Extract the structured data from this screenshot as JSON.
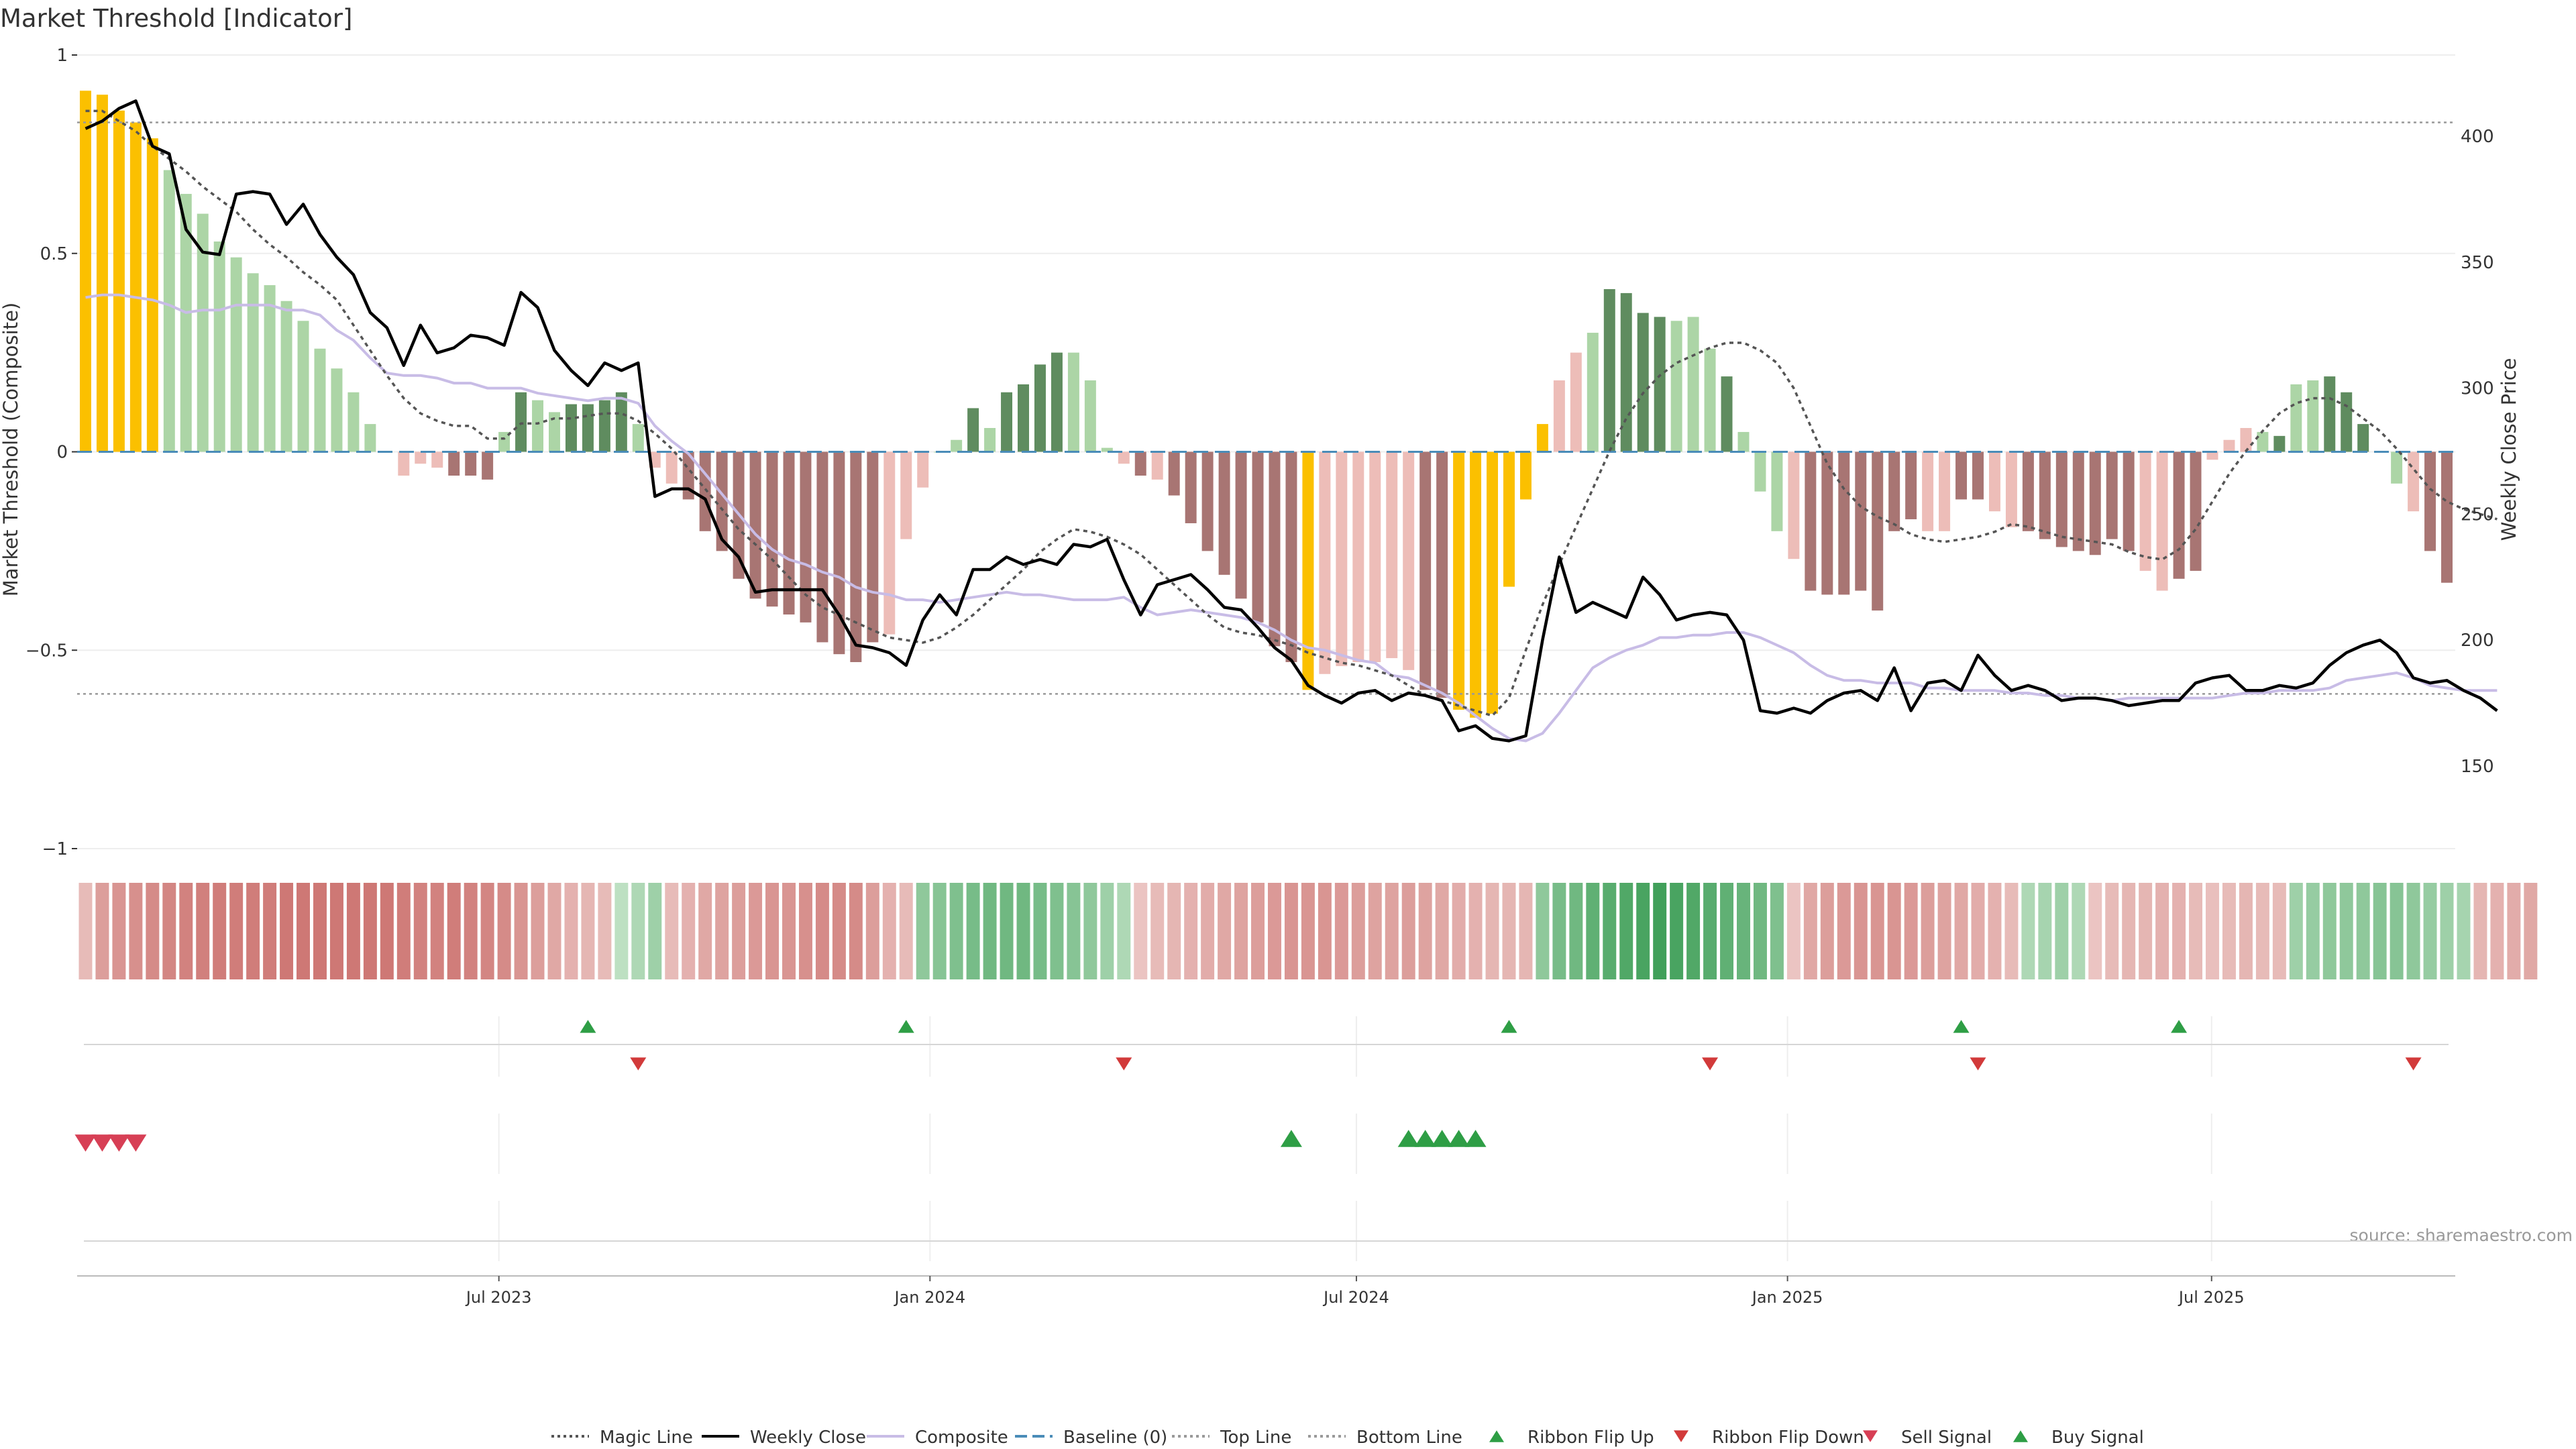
{
  "title": "Market Threshold [Indicator]",
  "source": "source: sharemaestro.com",
  "colors": {
    "strong_up": "#5f8c5f",
    "weak_up": "#acd5a6",
    "strong_down": "#a87573",
    "weak_down": "#edbdb8",
    "extreme": "#fbc000",
    "weekly_close": "#000000",
    "composite_line": "#c8bce6",
    "magic_line": "#555555",
    "baseline": "#4a8cb8",
    "threshold_lines": "#888888",
    "ribbon_flip_up": "#2e9e45",
    "ribbon_flip_down": "#d23a3a",
    "buy_signal": "#2e9e45",
    "sell_signal": "#d73f55"
  },
  "chart_data": {
    "type": "bar",
    "title": "Market Threshold [Indicator]",
    "ylabel": "Market Threshold (Composite)",
    "ylabel_right": "Weekly Close Price",
    "ylim": [
      -1,
      1
    ],
    "ylim_right": [
      100,
      430
    ],
    "yticks": [
      1,
      0.5,
      0,
      -0.5,
      -1
    ],
    "ytick_labels": [
      "1",
      "0.5",
      "0",
      "−0.5",
      "−1"
    ],
    "yticks_right": [
      400,
      350,
      300,
      250,
      200,
      150
    ],
    "top_line": 0.83,
    "bottom_line": -0.61,
    "baseline": 0,
    "grid": true,
    "legend_position": "bottom",
    "x_start": "2023-01-02",
    "x_end": "2025-10-13",
    "x_ticks": [
      {
        "date": "2023-07-01",
        "label": "Jul 2023"
      },
      {
        "date": "2024-01-01",
        "label": "Jan 2024"
      },
      {
        "date": "2024-07-01",
        "label": "Jul 2024"
      },
      {
        "date": "2025-01-01",
        "label": "Jan 2025"
      },
      {
        "date": "2025-07-01",
        "label": "Jul 2025"
      }
    ],
    "week_start": "2023-01-02",
    "composite": [
      0.91,
      0.9,
      0.86,
      0.83,
      0.79,
      0.71,
      0.65,
      0.6,
      0.53,
      0.49,
      0.45,
      0.42,
      0.38,
      0.33,
      0.26,
      0.21,
      0.15,
      0.07,
      0.0,
      -0.06,
      -0.03,
      -0.04,
      -0.06,
      -0.06,
      -0.07,
      0.05,
      0.15,
      0.13,
      0.1,
      0.12,
      0.12,
      0.13,
      0.15,
      0.07,
      -0.04,
      -0.08,
      -0.12,
      -0.2,
      -0.25,
      -0.32,
      -0.37,
      -0.39,
      -0.41,
      -0.43,
      -0.48,
      -0.51,
      -0.53,
      -0.48,
      -0.46,
      -0.22,
      -0.09,
      0.0,
      0.03,
      0.11,
      0.06,
      0.15,
      0.17,
      0.22,
      0.25,
      0.25,
      0.18,
      0.01,
      -0.03,
      -0.06,
      -0.07,
      -0.11,
      -0.18,
      -0.25,
      -0.31,
      -0.37,
      -0.43,
      -0.49,
      -0.53,
      -0.6,
      -0.56,
      -0.54,
      -0.53,
      -0.53,
      -0.52,
      -0.55,
      -0.6,
      -0.62,
      -0.65,
      -0.67,
      -0.66,
      -0.34,
      -0.12,
      0.07,
      0.18,
      0.25,
      0.3,
      0.41,
      0.4,
      0.35,
      0.34,
      0.33,
      0.34,
      0.26,
      0.19,
      0.05,
      -0.1,
      -0.2,
      -0.27,
      -0.35,
      -0.36,
      -0.36,
      -0.35,
      -0.4,
      -0.2,
      -0.17,
      -0.2,
      -0.2,
      -0.12,
      -0.12,
      -0.15,
      -0.19,
      -0.2,
      -0.22,
      -0.24,
      -0.25,
      -0.26,
      -0.22,
      -0.25,
      -0.3,
      -0.35,
      -0.32,
      -0.3,
      -0.02,
      0.03,
      0.06,
      0.05,
      0.04,
      0.17,
      0.18,
      0.19,
      0.15,
      0.07,
      0.0,
      -0.08,
      -0.15,
      -0.25,
      -0.33
    ],
    "bar_class": [
      "e",
      "e",
      "e",
      "e",
      "e",
      "w",
      "w",
      "w",
      "w",
      "w",
      "w",
      "w",
      "w",
      "w",
      "w",
      "w",
      "w",
      "w",
      "w",
      "wd",
      "wd",
      "wd",
      "sd",
      "sd",
      "sd",
      "w",
      "s",
      "w",
      "w",
      "s",
      "s",
      "s",
      "s",
      "w",
      "wd",
      "wd",
      "sd",
      "sd",
      "sd",
      "sd",
      "sd",
      "sd",
      "sd",
      "sd",
      "sd",
      "sd",
      "sd",
      "sd",
      "wd",
      "wd",
      "wd",
      "w",
      "w",
      "s",
      "w",
      "s",
      "s",
      "s",
      "s",
      "w",
      "w",
      "w",
      "wd",
      "sd",
      "wd",
      "sd",
      "sd",
      "sd",
      "sd",
      "sd",
      "sd",
      "sd",
      "sd",
      "e",
      "wd",
      "wd",
      "wd",
      "wd",
      "wd",
      "wd",
      "sd",
      "sd",
      "e",
      "e",
      "e",
      "e",
      "e",
      "e",
      "wd",
      "wd",
      "w",
      "s",
      "s",
      "s",
      "s",
      "w",
      "w",
      "w",
      "s",
      "w",
      "w",
      "w",
      "wd",
      "sd",
      "sd",
      "sd",
      "sd",
      "sd",
      "sd",
      "sd",
      "wd",
      "wd",
      "sd",
      "sd",
      "wd",
      "wd",
      "sd",
      "sd",
      "sd",
      "sd",
      "sd",
      "sd",
      "sd",
      "wd",
      "wd",
      "sd",
      "sd",
      "wd",
      "wd",
      "wd",
      "w",
      "s",
      "w",
      "w",
      "s",
      "s",
      "s",
      "w",
      "w",
      "wd",
      "sd",
      "sd",
      "sd",
      "sd"
    ],
    "weekly_close": [
      403,
      406,
      411,
      414,
      396,
      393,
      363,
      354,
      353,
      377,
      378,
      377,
      365,
      373,
      361,
      352,
      345,
      330,
      324,
      309,
      325,
      314,
      316,
      321,
      320,
      317,
      338,
      332,
      315,
      307,
      301,
      310,
      307,
      310,
      257,
      260,
      260,
      256,
      240,
      233,
      219,
      220,
      220,
      220,
      220,
      210,
      198,
      197,
      195,
      190,
      208,
      218,
      210,
      228,
      228,
      233,
      230,
      232,
      230,
      238,
      237,
      240,
      224,
      210,
      222,
      224,
      226,
      220,
      213,
      212,
      205,
      197,
      192,
      182,
      178,
      175,
      179,
      180,
      176,
      179,
      178,
      176,
      164,
      166,
      161,
      160,
      162,
      200,
      233,
      211,
      215,
      212,
      209,
      225,
      218,
      208,
      210,
      211,
      210,
      200,
      172,
      171,
      173,
      171,
      176,
      179,
      180,
      176,
      189,
      172,
      183,
      184,
      180,
      194,
      186,
      180,
      182,
      180,
      176,
      177,
      177,
      176,
      174,
      175,
      176,
      176,
      183,
      185,
      186,
      180,
      180,
      182,
      181,
      183,
      190,
      195,
      198,
      200,
      195,
      185,
      183,
      184,
      180,
      177,
      172
    ],
    "composite_line": [
      336,
      337,
      337,
      336,
      335,
      333,
      330,
      331,
      331,
      333,
      333,
      333,
      331,
      331,
      329,
      323,
      319,
      312,
      306,
      305,
      305,
      304,
      302,
      302,
      300,
      300,
      300,
      298,
      297,
      296,
      295,
      296,
      296,
      294,
      285,
      279,
      274,
      266,
      258,
      250,
      242,
      236,
      232,
      230,
      227,
      225,
      221,
      219,
      218,
      216,
      216,
      215,
      216,
      217,
      218,
      219,
      218,
      218,
      217,
      216,
      216,
      216,
      217,
      213,
      210,
      211,
      212,
      211,
      210,
      209,
      207,
      204,
      200,
      197,
      196,
      194,
      192,
      191,
      186,
      185,
      182,
      179,
      175,
      170,
      165,
      161,
      160,
      163,
      171,
      180,
      189,
      193,
      196,
      198,
      201,
      201,
      202,
      202,
      203,
      203,
      201,
      198,
      195,
      190,
      186,
      184,
      184,
      183,
      183,
      183,
      181,
      181,
      180,
      180,
      180,
      179,
      179,
      178,
      178,
      177,
      177,
      176,
      177,
      177,
      177,
      177,
      177,
      177,
      178,
      179,
      179,
      180,
      180,
      180,
      181,
      184,
      185,
      186,
      187,
      185,
      182,
      181,
      180,
      180,
      180
    ],
    "magic_line": [
      410,
      410,
      406,
      402,
      396,
      391,
      386,
      380,
      375,
      370,
      363,
      357,
      352,
      346,
      341,
      335,
      325,
      315,
      305,
      296,
      290,
      287,
      285,
      285,
      280,
      280,
      286,
      286,
      288,
      288,
      289,
      290,
      290,
      287,
      282,
      276,
      268,
      260,
      252,
      244,
      238,
      232,
      225,
      218,
      213,
      210,
      207,
      204,
      201,
      200,
      199,
      201,
      205,
      210,
      216,
      222,
      228,
      235,
      240,
      244,
      243,
      241,
      238,
      234,
      228,
      222,
      216,
      210,
      205,
      203,
      202,
      200,
      198,
      195,
      193,
      191,
      190,
      188,
      186,
      182,
      178,
      176,
      174,
      172,
      170,
      177,
      196,
      214,
      230,
      245,
      260,
      275,
      288,
      298,
      305,
      310,
      313,
      316,
      318,
      318,
      315,
      310,
      300,
      285,
      270,
      260,
      253,
      249,
      246,
      242,
      240,
      239,
      240,
      241,
      243,
      246,
      245,
      243,
      241,
      240,
      239,
      238,
      235,
      233,
      232,
      236,
      244,
      255,
      266,
      275,
      283,
      290,
      294,
      296,
      296,
      293,
      288,
      283,
      276,
      268,
      260,
      255,
      252,
      250,
      248
    ],
    "ribbon": [
      -0.3,
      -0.6,
      -0.7,
      -0.75,
      -0.8,
      -0.85,
      -0.9,
      -0.92,
      -0.95,
      -0.95,
      -0.95,
      -0.95,
      -1,
      -1,
      -1,
      -1,
      -1,
      -1,
      -1,
      -0.95,
      -0.9,
      -0.9,
      -0.95,
      -0.9,
      -0.85,
      -0.8,
      -0.7,
      -0.6,
      -0.5,
      -0.4,
      -0.35,
      -0.3,
      0.2,
      0.3,
      0.4,
      -0.3,
      -0.4,
      -0.5,
      -0.55,
      -0.6,
      -0.65,
      -0.7,
      -0.7,
      -0.75,
      -0.8,
      -0.8,
      -0.8,
      -0.6,
      -0.4,
      -0.3,
      0.5,
      0.55,
      0.6,
      0.65,
      0.7,
      0.7,
      0.7,
      0.65,
      0.6,
      0.55,
      0.5,
      0.4,
      0.3,
      -0.2,
      -0.3,
      -0.35,
      -0.4,
      -0.45,
      -0.5,
      -0.55,
      -0.6,
      -0.65,
      -0.7,
      -0.7,
      -0.7,
      -0.65,
      -0.6,
      -0.55,
      -0.55,
      -0.6,
      -0.55,
      -0.5,
      -0.45,
      -0.4,
      -0.35,
      -0.35,
      -0.35,
      0.5,
      0.65,
      0.7,
      0.8,
      0.85,
      0.9,
      0.95,
      1,
      0.95,
      0.9,
      0.85,
      0.8,
      0.75,
      0.7,
      0.6,
      -0.2,
      -0.5,
      -0.6,
      -0.65,
      -0.7,
      -0.7,
      -0.7,
      -0.65,
      -0.6,
      -0.55,
      -0.5,
      -0.45,
      -0.4,
      -0.3,
      0.3,
      0.35,
      0.4,
      0.3,
      -0.2,
      -0.3,
      -0.35,
      -0.35,
      -0.4,
      -0.4,
      -0.3,
      -0.25,
      -0.3,
      -0.35,
      -0.3,
      -0.3,
      0.4,
      0.45,
      0.5,
      0.5,
      0.5,
      0.55,
      0.55,
      0.5,
      0.45,
      0.4,
      0.35,
      -0.35,
      -0.4,
      -0.45,
      -0.5
    ],
    "ribbon_flip_up": [
      30,
      49,
      85,
      112,
      125
    ],
    "ribbon_flip_down": [
      33,
      62,
      97,
      113,
      139
    ],
    "sell_signal": [
      0,
      1,
      2,
      3
    ],
    "buy_signal": [
      72,
      79,
      80,
      81,
      82,
      83
    ]
  },
  "legend": [
    {
      "label": "Magic Line",
      "symbol": "dotted-line",
      "color": "#555555"
    },
    {
      "label": "Weekly Close",
      "symbol": "solid-line",
      "color": "#000000"
    },
    {
      "label": "Composite",
      "symbol": "solid-line",
      "color": "#c8bce6"
    },
    {
      "label": "Baseline (0)",
      "symbol": "dashed-line",
      "color": "#4a8cb8"
    },
    {
      "label": "Top Line",
      "symbol": "dotted-line",
      "color": "#999999"
    },
    {
      "label": "Bottom Line",
      "symbol": "dotted-line",
      "color": "#999999"
    },
    {
      "label": "Ribbon Flip Up",
      "symbol": "triangle-up",
      "color": "#2e9e45"
    },
    {
      "label": "Ribbon Flip Down",
      "symbol": "triangle-down",
      "color": "#d23a3a"
    },
    {
      "label": "Sell Signal",
      "symbol": "triangle-down",
      "color": "#d73f55"
    },
    {
      "label": "Buy Signal",
      "symbol": "triangle-up",
      "color": "#2e9e45"
    }
  ]
}
